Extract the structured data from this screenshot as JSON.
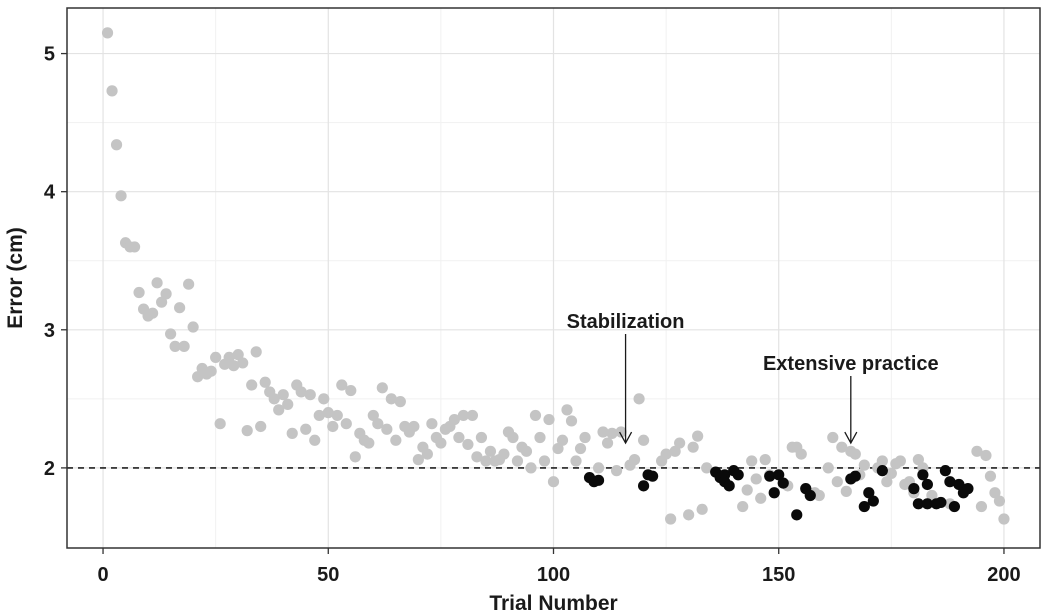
{
  "chart_data": {
    "type": "scatter",
    "xlabel": "Trial Number",
    "ylabel": "Error (cm)",
    "xlim": [
      -8,
      208
    ],
    "ylim": [
      1.42,
      5.33
    ],
    "xticks": [
      0,
      50,
      100,
      150,
      200
    ],
    "yticks": [
      2,
      3,
      4,
      5
    ],
    "grid": true,
    "reference_line": {
      "y": 2.0,
      "style": "dashed"
    },
    "colors": {
      "gray_points": "#c4c4c4",
      "black_points": "#0a0a0a",
      "axis": "#333333",
      "grid": "#e3e3e3"
    },
    "annotations": [
      {
        "text": "Stabilization",
        "x": 116,
        "y": 2.18
      },
      {
        "text": "Extensive practice",
        "x": 166,
        "y": 2.18
      }
    ],
    "series": [
      {
        "color": "gray",
        "points": [
          [
            1,
            5.15
          ],
          [
            2,
            4.73
          ],
          [
            3,
            4.34
          ],
          [
            4,
            3.97
          ],
          [
            5,
            3.63
          ],
          [
            6,
            3.6
          ],
          [
            7,
            3.6
          ],
          [
            8,
            3.27
          ],
          [
            9,
            3.15
          ],
          [
            10,
            3.1
          ],
          [
            11,
            3.12
          ],
          [
            12,
            3.34
          ],
          [
            13,
            3.2
          ],
          [
            14,
            3.26
          ],
          [
            15,
            2.97
          ],
          [
            16,
            2.88
          ],
          [
            17,
            3.16
          ],
          [
            18,
            2.88
          ],
          [
            19,
            3.33
          ],
          [
            20,
            3.02
          ],
          [
            21,
            2.66
          ],
          [
            22,
            2.72
          ],
          [
            23,
            2.68
          ],
          [
            24,
            2.7
          ],
          [
            25,
            2.8
          ],
          [
            26,
            2.32
          ],
          [
            27,
            2.75
          ],
          [
            28,
            2.8
          ],
          [
            29,
            2.74
          ],
          [
            30,
            2.82
          ],
          [
            31,
            2.76
          ],
          [
            32,
            2.27
          ],
          [
            33,
            2.6
          ],
          [
            34,
            2.84
          ],
          [
            35,
            2.3
          ],
          [
            36,
            2.62
          ],
          [
            37,
            2.55
          ],
          [
            38,
            2.5
          ],
          [
            39,
            2.42
          ],
          [
            40,
            2.53
          ],
          [
            41,
            2.46
          ],
          [
            42,
            2.25
          ],
          [
            43,
            2.6
          ],
          [
            44,
            2.55
          ],
          [
            45,
            2.28
          ],
          [
            46,
            2.53
          ],
          [
            47,
            2.2
          ],
          [
            48,
            2.38
          ],
          [
            49,
            2.5
          ],
          [
            50,
            2.4
          ],
          [
            51,
            2.3
          ],
          [
            52,
            2.38
          ],
          [
            53,
            2.6
          ],
          [
            54,
            2.32
          ],
          [
            55,
            2.56
          ],
          [
            56,
            2.08
          ],
          [
            57,
            2.25
          ],
          [
            58,
            2.2
          ],
          [
            59,
            2.18
          ],
          [
            60,
            2.38
          ],
          [
            61,
            2.32
          ],
          [
            62,
            2.58
          ],
          [
            63,
            2.28
          ],
          [
            64,
            2.5
          ],
          [
            65,
            2.2
          ],
          [
            66,
            2.48
          ],
          [
            67,
            2.3
          ],
          [
            68,
            2.26
          ],
          [
            69,
            2.3
          ],
          [
            70,
            2.06
          ],
          [
            71,
            2.15
          ],
          [
            72,
            2.1
          ],
          [
            73,
            2.32
          ],
          [
            74,
            2.22
          ],
          [
            75,
            2.18
          ],
          [
            76,
            2.28
          ],
          [
            77,
            2.3
          ],
          [
            78,
            2.35
          ],
          [
            79,
            2.22
          ],
          [
            80,
            2.38
          ],
          [
            81,
            2.17
          ],
          [
            82,
            2.38
          ],
          [
            83,
            2.08
          ],
          [
            84,
            2.22
          ],
          [
            85,
            2.05
          ],
          [
            86,
            2.12
          ],
          [
            87,
            2.05
          ],
          [
            88,
            2.06
          ],
          [
            89,
            2.1
          ],
          [
            90,
            2.26
          ],
          [
            91,
            2.22
          ],
          [
            92,
            2.05
          ],
          [
            93,
            2.15
          ],
          [
            94,
            2.12
          ],
          [
            95,
            2.0
          ],
          [
            96,
            2.38
          ],
          [
            97,
            2.22
          ],
          [
            98,
            2.05
          ],
          [
            99,
            2.35
          ],
          [
            100,
            1.9
          ],
          [
            101,
            2.14
          ],
          [
            102,
            2.2
          ],
          [
            103,
            2.42
          ],
          [
            104,
            2.34
          ],
          [
            105,
            2.05
          ],
          [
            106,
            2.14
          ],
          [
            107,
            2.22
          ],
          [
            110,
            2.0
          ],
          [
            111,
            2.26
          ],
          [
            112,
            2.18
          ],
          [
            113,
            2.25
          ],
          [
            114,
            1.98
          ],
          [
            115,
            2.26
          ],
          [
            117,
            2.02
          ],
          [
            118,
            2.06
          ],
          [
            119,
            2.5
          ],
          [
            120,
            2.2
          ],
          [
            124,
            2.05
          ],
          [
            125,
            2.1
          ],
          [
            126,
            1.63
          ],
          [
            127,
            2.12
          ],
          [
            128,
            2.18
          ],
          [
            130,
            1.66
          ],
          [
            131,
            2.15
          ],
          [
            132,
            2.23
          ],
          [
            133,
            1.7
          ],
          [
            134,
            2.0
          ],
          [
            142,
            1.72
          ],
          [
            143,
            1.84
          ],
          [
            144,
            2.05
          ],
          [
            145,
            1.92
          ],
          [
            146,
            1.78
          ],
          [
            147,
            2.06
          ],
          [
            148,
            1.95
          ],
          [
            152,
            1.87
          ],
          [
            153,
            2.15
          ],
          [
            154,
            2.15
          ],
          [
            155,
            2.1
          ],
          [
            158,
            1.82
          ],
          [
            159,
            1.8
          ],
          [
            161,
            2.0
          ],
          [
            162,
            2.22
          ],
          [
            163,
            1.9
          ],
          [
            164,
            2.15
          ],
          [
            165,
            1.83
          ],
          [
            166,
            2.12
          ],
          [
            167,
            2.1
          ],
          [
            168,
            1.95
          ],
          [
            169,
            2.02
          ],
          [
            172,
            2.0
          ],
          [
            173,
            2.05
          ],
          [
            174,
            1.9
          ],
          [
            175,
            1.96
          ],
          [
            176,
            2.03
          ],
          [
            177,
            2.05
          ],
          [
            178,
            1.88
          ],
          [
            179,
            1.9
          ],
          [
            180,
            1.82
          ],
          [
            181,
            2.06
          ],
          [
            182,
            2.0
          ],
          [
            184,
            1.8
          ],
          [
            187,
            1.98
          ],
          [
            188,
            1.74
          ],
          [
            190,
            1.88
          ],
          [
            194,
            2.12
          ],
          [
            195,
            1.72
          ],
          [
            196,
            2.09
          ],
          [
            197,
            1.94
          ],
          [
            198,
            1.82
          ],
          [
            199,
            1.76
          ],
          [
            200,
            1.63
          ]
        ]
      },
      {
        "color": "black",
        "points": [
          [
            108,
            1.93
          ],
          [
            109,
            1.9
          ],
          [
            110,
            1.91
          ],
          [
            120,
            1.87
          ],
          [
            121,
            1.95
          ],
          [
            122,
            1.94
          ],
          [
            136,
            1.97
          ],
          [
            137,
            1.93
          ],
          [
            138,
            1.95
          ],
          [
            138,
            1.9
          ],
          [
            139,
            1.87
          ],
          [
            140,
            1.98
          ],
          [
            141,
            1.95
          ],
          [
            148,
            1.94
          ],
          [
            149,
            1.82
          ],
          [
            150,
            1.95
          ],
          [
            151,
            1.89
          ],
          [
            154,
            1.66
          ],
          [
            156,
            1.85
          ],
          [
            157,
            1.8
          ],
          [
            166,
            1.92
          ],
          [
            167,
            1.94
          ],
          [
            169,
            1.72
          ],
          [
            170,
            1.82
          ],
          [
            171,
            1.76
          ],
          [
            173,
            1.98
          ],
          [
            180,
            1.85
          ],
          [
            181,
            1.74
          ],
          [
            182,
            1.95
          ],
          [
            183,
            1.88
          ],
          [
            183,
            1.74
          ],
          [
            185,
            1.74
          ],
          [
            186,
            1.75
          ],
          [
            187,
            1.98
          ],
          [
            188,
            1.9
          ],
          [
            189,
            1.72
          ],
          [
            190,
            1.88
          ],
          [
            191,
            1.82
          ],
          [
            192,
            1.85
          ]
        ]
      }
    ]
  }
}
